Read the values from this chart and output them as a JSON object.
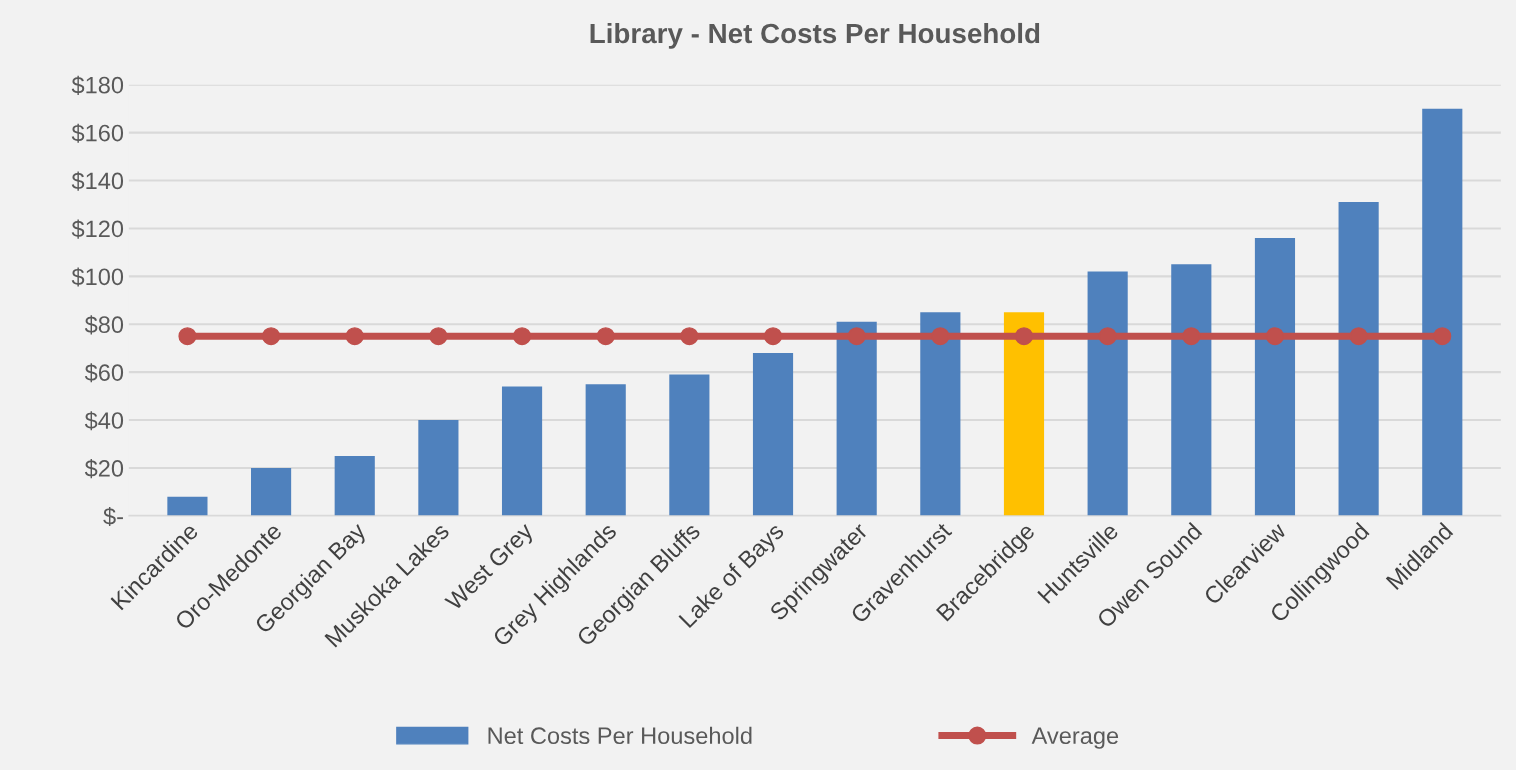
{
  "chart_data": {
    "type": "bar",
    "title": "Library - Net Costs Per Household",
    "categories": [
      "Kincardine",
      "Oro-Medonte",
      "Georgian Bay",
      "Muskoka Lakes",
      "West Grey",
      "Grey Highlands",
      "Georgian Bluffs",
      "Lake of Bays",
      "Springwater",
      "Gravenhurst",
      "Bracebridge",
      "Huntsville",
      "Owen Sound",
      "Clearview",
      "Collingwood",
      "Midland"
    ],
    "series": [
      {
        "name": "Net Costs Per Household",
        "color": "#4f81bd",
        "colors": [
          "#4f81bd",
          "#4f81bd",
          "#4f81bd",
          "#4f81bd",
          "#4f81bd",
          "#4f81bd",
          "#4f81bd",
          "#4f81bd",
          "#4f81bd",
          "#4f81bd",
          "#ffc000",
          "#4f81bd",
          "#4f81bd",
          "#4f81bd",
          "#4f81bd",
          "#4f81bd"
        ],
        "values": [
          8,
          20,
          25,
          40,
          54,
          55,
          59,
          68,
          81,
          85,
          85,
          102,
          105,
          116,
          131,
          170
        ]
      },
      {
        "name": "Average",
        "type": "line",
        "color": "#c0504d",
        "marker": "circle",
        "values": [
          75,
          75,
          75,
          75,
          75,
          75,
          75,
          75,
          75,
          75,
          75,
          75,
          75,
          75,
          75,
          75
        ]
      }
    ],
    "ylim": [
      0,
      180
    ],
    "yticks": [
      {
        "value": 0,
        "label": "$-"
      },
      {
        "value": 20,
        "label": "$20"
      },
      {
        "value": 40,
        "label": "$40"
      },
      {
        "value": 60,
        "label": "$60"
      },
      {
        "value": 80,
        "label": "$80"
      },
      {
        "value": 100,
        "label": "$100"
      },
      {
        "value": 120,
        "label": "$120"
      },
      {
        "value": 140,
        "label": "$140"
      },
      {
        "value": 160,
        "label": "$160"
      },
      {
        "value": 180,
        "label": "$180"
      }
    ],
    "grid": "y",
    "legend": "bottom"
  }
}
